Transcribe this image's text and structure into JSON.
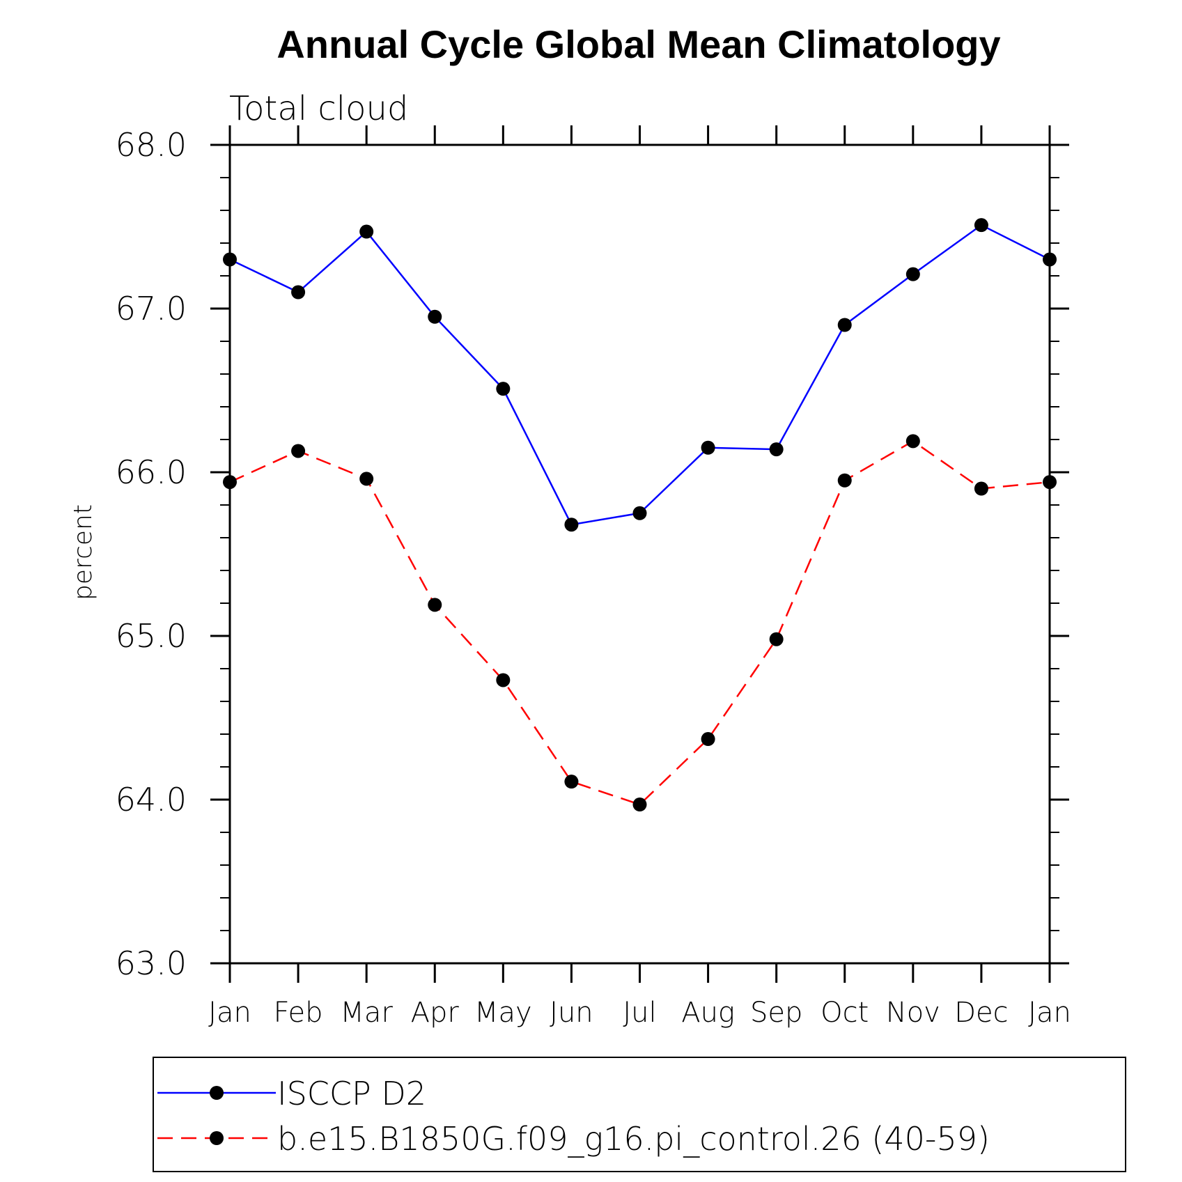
{
  "chart_data": {
    "type": "line",
    "title": "Annual Cycle Global Mean Climatology",
    "subtitle": "Total cloud",
    "ylabel": "percent",
    "xlabel": "",
    "categories": [
      "Jan",
      "Feb",
      "Mar",
      "Apr",
      "May",
      "Jun",
      "Jul",
      "Aug",
      "Sep",
      "Oct",
      "Nov",
      "Dec",
      "Jan"
    ],
    "ylim": [
      63.0,
      68.0
    ],
    "yticks": [
      "63.0",
      "64.0",
      "65.0",
      "66.0",
      "67.0",
      "68.0"
    ],
    "legend_position": "bottom",
    "grid": false,
    "series": [
      {
        "name": "ISCCP D2",
        "color": "#0000ff",
        "style": "solid",
        "marker": "filled-circle",
        "values": [
          67.3,
          67.1,
          67.47,
          66.95,
          66.51,
          65.68,
          65.75,
          66.15,
          66.14,
          66.9,
          67.21,
          67.51,
          67.3
        ]
      },
      {
        "name": "b.e15.B1850G.f09_g16.pi_control.26 (40-59)",
        "color": "#ff0000",
        "style": "dashed",
        "marker": "filled-circle",
        "values": [
          65.94,
          66.13,
          65.96,
          65.19,
          64.73,
          64.11,
          63.97,
          64.37,
          64.98,
          65.95,
          66.19,
          65.9,
          65.94
        ]
      }
    ]
  }
}
